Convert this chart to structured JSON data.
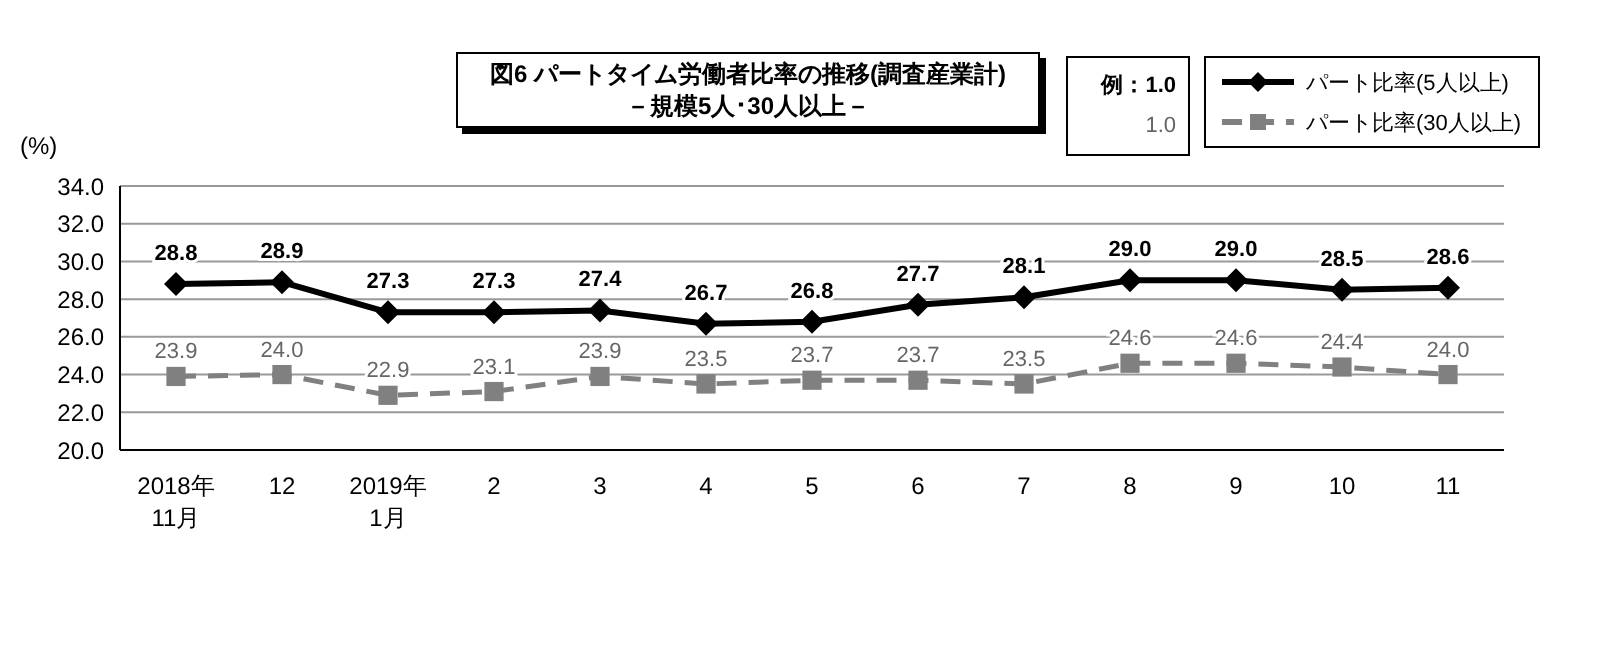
{
  "chart_data": {
    "type": "line",
    "title": "図6  パートタイム労働者比率の推移(調査産業計)",
    "subtitle": "－規模5人･30人以上－",
    "ylabel": "(%)",
    "categories": [
      "2018年\n11月",
      "12",
      "2019年\n1月",
      "2",
      "3",
      "4",
      "5",
      "6",
      "7",
      "8",
      "9",
      "10",
      "11"
    ],
    "series": [
      {
        "name": "パート比率(5人以上)",
        "color": "#000000",
        "marker": "diamond",
        "line_style": "solid",
        "values": [
          28.8,
          28.9,
          27.3,
          27.3,
          27.4,
          26.7,
          26.8,
          27.7,
          28.1,
          29.0,
          29.0,
          28.5,
          28.6
        ],
        "value_labels": [
          "28.8",
          "28.9",
          "27.3",
          "27.3",
          "27.4",
          "26.7",
          "26.8",
          "27.7",
          "28.1",
          "29.0",
          "29.0",
          "28.5",
          "28.6"
        ]
      },
      {
        "name": "パート比率(30人以上)",
        "color": "#808080",
        "marker": "square",
        "line_style": "dashed",
        "values": [
          23.9,
          24.0,
          22.9,
          23.1,
          23.9,
          23.5,
          23.7,
          23.7,
          23.5,
          24.6,
          24.6,
          24.4,
          24.0
        ],
        "value_labels": [
          "23.9",
          "24.0",
          "22.9",
          "23.1",
          "23.9",
          "23.5",
          "23.7",
          "23.7",
          "23.5",
          "24.6",
          "24.6",
          "24.4",
          "24.0"
        ]
      }
    ],
    "ylim": [
      20,
      34
    ],
    "yticks": [
      {
        "value": 20,
        "label": "20.0"
      },
      {
        "value": 22,
        "label": "22.0"
      },
      {
        "value": 24,
        "label": "24.0"
      },
      {
        "value": 26,
        "label": "26.0"
      },
      {
        "value": 28,
        "label": "28.0"
      },
      {
        "value": 30,
        "label": "30.0"
      },
      {
        "value": 32,
        "label": "32.0"
      },
      {
        "value": 34,
        "label": "34.0"
      }
    ],
    "grid": "y",
    "legend": "top right",
    "annotations": [
      "例：1.0",
      "1.0"
    ]
  }
}
